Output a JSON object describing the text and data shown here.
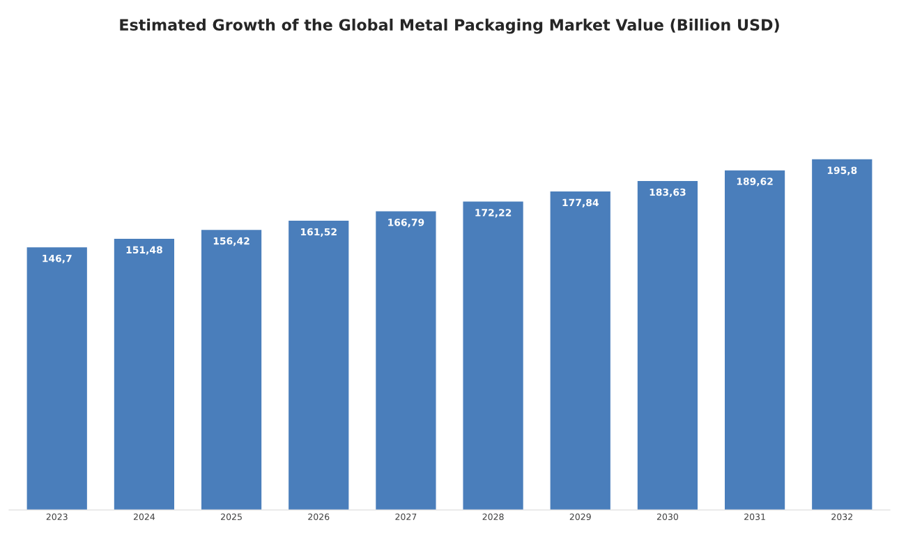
{
  "chart_data": {
    "type": "bar",
    "title": "Estimated Growth of the Global Metal Packaging Market Value (Billion USD)",
    "categories": [
      "2023",
      "2024",
      "2025",
      "2026",
      "2027",
      "2028",
      "2029",
      "2030",
      "2031",
      "2032"
    ],
    "values": [
      146.7,
      151.48,
      156.42,
      161.52,
      166.79,
      172.22,
      177.84,
      183.63,
      189.62,
      195.8
    ],
    "value_labels": [
      "146,7",
      "151,48",
      "156,42",
      "161,52",
      "166,79",
      "172,22",
      "177,84",
      "183,63",
      "189,62",
      "195,8"
    ],
    "color": "#4a7ebb",
    "grid": false,
    "legend": false
  }
}
